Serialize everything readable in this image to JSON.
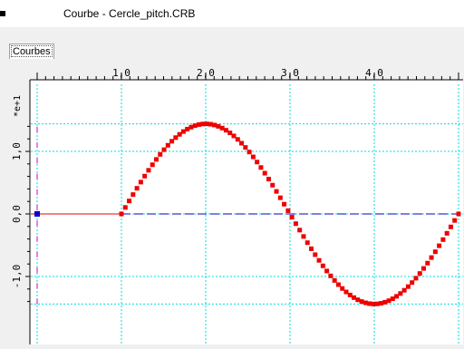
{
  "window": {
    "title": "Courbe - Cercle_pitch.CRB"
  },
  "tabs": [
    {
      "label": "Courbes",
      "active": true
    }
  ],
  "colors": {
    "grid": "#00dede",
    "curve": "#ee0000",
    "zero_line": "#0000cc",
    "axis_markers": "#cc00cc",
    "frame": "#000000"
  },
  "chart_data": {
    "type": "scatter",
    "title": "",
    "x_ticks": [
      "1,0",
      "2,0",
      "3,0",
      "4,0"
    ],
    "y_ticks": [
      "1,0",
      "0,0",
      "-1,0"
    ],
    "y_multiplier": "*e+1",
    "xlim": [
      0.0,
      5.0
    ],
    "ylim": [
      -15,
      15
    ],
    "grid": true,
    "series": [
      {
        "marker": "square",
        "x_start": 1.0,
        "x_end": 5.0,
        "points": 88,
        "shape": "sine",
        "amplitude": 14.4,
        "period": 4.0
      }
    ],
    "flat_segment": {
      "x": [
        0.0,
        1.0
      ],
      "y": 0.0
    },
    "dashed_zero_line": {
      "x": [
        1.0,
        5.0
      ],
      "y": 0.0
    }
  }
}
